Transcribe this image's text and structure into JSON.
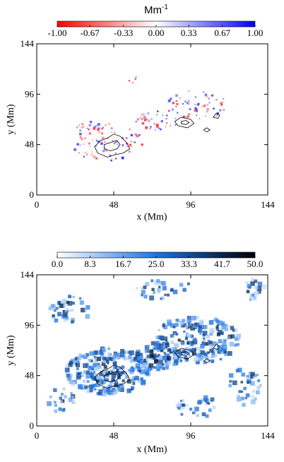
{
  "chart_data": [
    {
      "type": "heatmap",
      "title": "",
      "xlabel": "x (Mm)",
      "ylabel": "y (Mm)",
      "xlim": [
        0,
        144
      ],
      "ylim": [
        0,
        144
      ],
      "xticks": [
        0,
        48,
        96,
        144
      ],
      "yticks": [
        0,
        48,
        96,
        144
      ],
      "colorbar": {
        "unit": "Mm",
        "unit_sup": "-1",
        "min": -1.0,
        "max": 1.0,
        "ticks": [
          "-1.00",
          "-0.67",
          "-0.33",
          "0.00",
          "0.33",
          "0.67",
          "1.00"
        ],
        "tick_values": [
          -1.0,
          -0.67,
          -0.33,
          0.0,
          0.33,
          0.67,
          1.0
        ],
        "colormap": "red-white-blue",
        "low_color": "#ff0000",
        "mid_color": "#ffffff",
        "high_color": "#0000ff"
      },
      "clusters": [
        {
          "cx": 44,
          "cy": 50,
          "rx": 22,
          "ry": 18,
          "n": 70
        },
        {
          "cx": 75,
          "cy": 72,
          "rx": 14,
          "ry": 10,
          "n": 35
        },
        {
          "cx": 100,
          "cy": 86,
          "rx": 18,
          "ry": 14,
          "n": 55
        },
        {
          "cx": 32,
          "cy": 64,
          "rx": 10,
          "ry": 6,
          "n": 20
        },
        {
          "cx": 60,
          "cy": 110,
          "rx": 4,
          "ry": 3,
          "n": 4
        }
      ],
      "contours": [
        {
          "color": "#000000",
          "points": [
            [
              38,
              40
            ],
            [
              36,
              46
            ],
            [
              40,
              52
            ],
            [
              44,
              54
            ],
            [
              48,
              58
            ],
            [
              52,
              56
            ],
            [
              56,
              50
            ],
            [
              58,
              44
            ],
            [
              54,
              40
            ],
            [
              48,
              38
            ],
            [
              44,
              36
            ]
          ]
        },
        {
          "color": "#000000",
          "points": [
            [
              42,
              44
            ],
            [
              42,
              48
            ],
            [
              46,
              50
            ],
            [
              50,
              52
            ],
            [
              52,
              48
            ],
            [
              50,
              44
            ],
            [
              46,
              42
            ]
          ]
        },
        {
          "color": "#000000",
          "points": [
            [
              88,
              66
            ],
            [
              86,
              70
            ],
            [
              90,
              74
            ],
            [
              96,
              72
            ],
            [
              98,
              68
            ],
            [
              94,
              64
            ]
          ]
        },
        {
          "color": "#000000",
          "points": [
            [
              90,
              68
            ],
            [
              90,
              70
            ],
            [
              93,
              71
            ],
            [
              95,
              69
            ],
            [
              93,
              67
            ]
          ]
        },
        {
          "color": "#000000",
          "points": [
            [
              110,
              74
            ],
            [
              112,
              78
            ],
            [
              114,
              76
            ],
            [
              113,
              73
            ]
          ]
        },
        {
          "color": "#000000",
          "points": [
            [
              104,
              62
            ],
            [
              106,
              64
            ],
            [
              108,
              62
            ],
            [
              106,
              60
            ]
          ]
        }
      ]
    },
    {
      "type": "heatmap",
      "title": "",
      "xlabel": "x (Mm)",
      "ylabel": "y (Mm)",
      "xlim": [
        0,
        144
      ],
      "ylim": [
        0,
        144
      ],
      "xticks": [
        0,
        48,
        96,
        144
      ],
      "yticks": [
        0,
        48,
        96,
        144
      ],
      "colorbar": {
        "unit": "",
        "min": 0.0,
        "max": 50.0,
        "ticks": [
          "0.0",
          "8.3",
          "16.7",
          "25.0",
          "33.3",
          "41.7",
          "50.0"
        ],
        "tick_values": [
          0.0,
          8.3,
          16.7,
          25.0,
          33.3,
          41.7,
          50.0
        ],
        "colormap": "white-blue-black",
        "low_color": "#ffffff",
        "mid_color": "#1a73e8",
        "high_color": "#000000"
      },
      "clusters": [
        {
          "cx": 44,
          "cy": 52,
          "rx": 26,
          "ry": 22,
          "n": 260
        },
        {
          "cx": 100,
          "cy": 82,
          "rx": 28,
          "ry": 22,
          "n": 220
        },
        {
          "cx": 75,
          "cy": 65,
          "rx": 14,
          "ry": 12,
          "n": 90
        },
        {
          "cx": 20,
          "cy": 110,
          "rx": 14,
          "ry": 14,
          "n": 40
        },
        {
          "cx": 80,
          "cy": 130,
          "rx": 18,
          "ry": 10,
          "n": 30
        },
        {
          "cx": 130,
          "cy": 40,
          "rx": 10,
          "ry": 20,
          "n": 35
        },
        {
          "cx": 100,
          "cy": 18,
          "rx": 14,
          "ry": 10,
          "n": 30
        },
        {
          "cx": 15,
          "cy": 25,
          "rx": 10,
          "ry": 12,
          "n": 20
        },
        {
          "cx": 135,
          "cy": 130,
          "rx": 8,
          "ry": 10,
          "n": 18
        }
      ],
      "contours": [
        {
          "color": "#000000",
          "points": [
            [
              38,
              40
            ],
            [
              36,
              46
            ],
            [
              40,
              52
            ],
            [
              44,
              54
            ],
            [
              48,
              58
            ],
            [
              52,
              56
            ],
            [
              56,
              50
            ],
            [
              58,
              44
            ],
            [
              54,
              40
            ],
            [
              48,
              38
            ],
            [
              44,
              36
            ]
          ]
        },
        {
          "color": "#000000",
          "points": [
            [
              42,
              44
            ],
            [
              42,
              48
            ],
            [
              46,
              50
            ],
            [
              50,
              52
            ],
            [
              52,
              48
            ],
            [
              50,
              44
            ],
            [
              46,
              42
            ]
          ]
        },
        {
          "color": "#000000",
          "points": [
            [
              88,
              66
            ],
            [
              86,
              70
            ],
            [
              90,
              74
            ],
            [
              96,
              72
            ],
            [
              98,
              68
            ],
            [
              94,
              64
            ]
          ]
        },
        {
          "color": "#000000",
          "points": [
            [
              90,
              68
            ],
            [
              90,
              70
            ],
            [
              93,
              71
            ],
            [
              95,
              69
            ],
            [
              93,
              67
            ]
          ]
        },
        {
          "color": "#000000",
          "points": [
            [
              110,
              74
            ],
            [
              112,
              78
            ],
            [
              114,
              76
            ],
            [
              113,
              73
            ]
          ]
        },
        {
          "color": "#000000",
          "points": [
            [
              104,
              62
            ],
            [
              106,
              64
            ],
            [
              108,
              62
            ],
            [
              106,
              60
            ]
          ]
        }
      ]
    }
  ]
}
